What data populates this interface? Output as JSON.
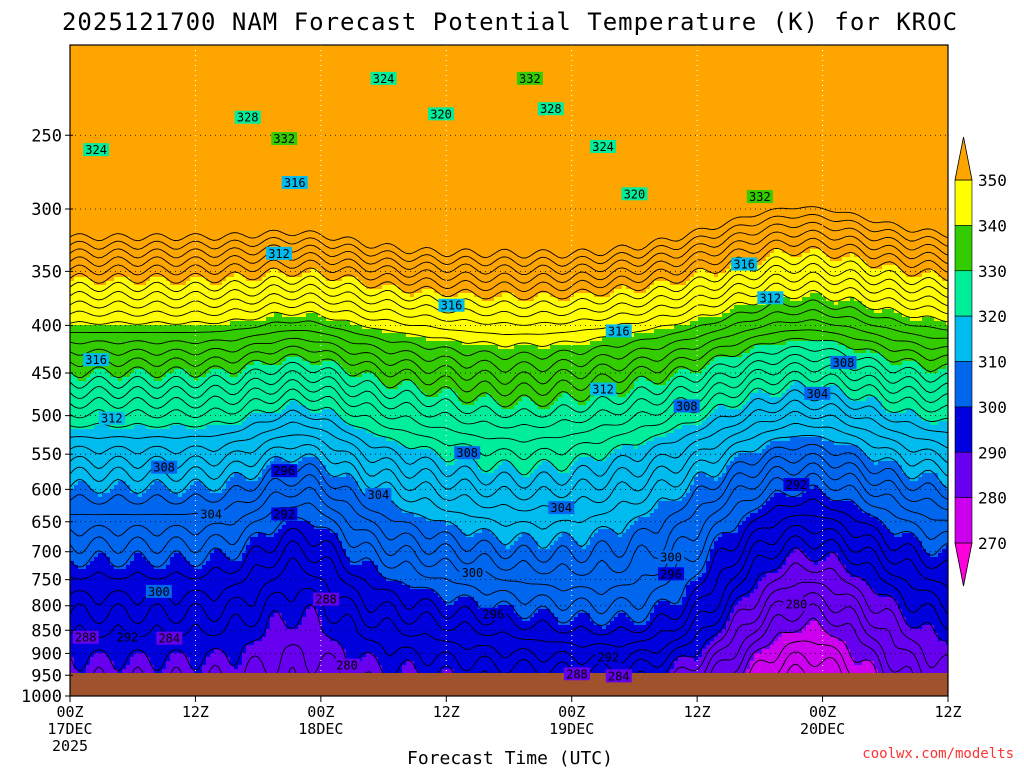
{
  "chart_data": {
    "type": "heatmap",
    "title": "2025121700 NAM Forecast Potential Temperature (K) for KROC",
    "xlabel": "Forecast Time (UTC)",
    "credit": "coolwx.com/modelts",
    "x_ticks": [
      {
        "hour": 0,
        "lines": [
          "00Z",
          "17DEC",
          "2025"
        ]
      },
      {
        "hour": 12,
        "lines": [
          "12Z"
        ]
      },
      {
        "hour": 24,
        "lines": [
          "00Z",
          "18DEC"
        ]
      },
      {
        "hour": 36,
        "lines": [
          "12Z"
        ]
      },
      {
        "hour": 48,
        "lines": [
          "00Z",
          "19DEC"
        ]
      },
      {
        "hour": 60,
        "lines": [
          "12Z"
        ]
      },
      {
        "hour": 72,
        "lines": [
          "00Z",
          "20DEC"
        ]
      },
      {
        "hour": 84,
        "lines": [
          "12Z"
        ]
      }
    ],
    "xlim": [
      0,
      84
    ],
    "y_axis": "pressure (hPa), log scale, inverted",
    "ylim": [
      1000,
      200
    ],
    "y_ticks": [
      250,
      300,
      350,
      400,
      450,
      500,
      550,
      600,
      650,
      700,
      750,
      800,
      850,
      900,
      950,
      1000
    ],
    "grid": true,
    "contour_interval": 2,
    "colorbar": {
      "placement": "right",
      "ticks": [
        350,
        340,
        330,
        320,
        310,
        300,
        290,
        280,
        270
      ],
      "bands": [
        {
          "min": 350,
          "max": 360,
          "color": "#ffa500"
        },
        {
          "min": 340,
          "max": 350,
          "color": "#ffff00"
        },
        {
          "min": 330,
          "max": 340,
          "color": "#33cc00"
        },
        {
          "min": 320,
          "max": 330,
          "color": "#00ee99"
        },
        {
          "min": 310,
          "max": 320,
          "color": "#00bbee"
        },
        {
          "min": 300,
          "max": 310,
          "color": "#0066ee"
        },
        {
          "min": 290,
          "max": 300,
          "color": "#0000dd"
        },
        {
          "min": 280,
          "max": 290,
          "color": "#6600ee"
        },
        {
          "min": 270,
          "max": 280,
          "color": "#cc00ee"
        },
        {
          "min": 260,
          "max": 270,
          "color": "#ff00dd"
        }
      ]
    },
    "ground_color": "#a0522d",
    "contour_labels": [
      {
        "value": 324,
        "hour": 2.5,
        "p": 260
      },
      {
        "value": 328,
        "hour": 17,
        "p": 240
      },
      {
        "value": 332,
        "hour": 20.5,
        "p": 253
      },
      {
        "value": 324,
        "hour": 30,
        "p": 218
      },
      {
        "value": 320,
        "hour": 35.5,
        "p": 238
      },
      {
        "value": 332,
        "hour": 44,
        "p": 218
      },
      {
        "value": 328,
        "hour": 46,
        "p": 235
      },
      {
        "value": 324,
        "hour": 51,
        "p": 258
      },
      {
        "value": 320,
        "hour": 54,
        "p": 290
      },
      {
        "value": 332,
        "hour": 66,
        "p": 292
      },
      {
        "value": 316,
        "hour": 21.5,
        "p": 282
      },
      {
        "value": 312,
        "hour": 20,
        "p": 336
      },
      {
        "value": 316,
        "hour": 2.5,
        "p": 437
      },
      {
        "value": 312,
        "hour": 4,
        "p": 505
      },
      {
        "value": 316,
        "hour": 36.5,
        "p": 382
      },
      {
        "value": 316,
        "hour": 52.5,
        "p": 407
      },
      {
        "value": 312,
        "hour": 51,
        "p": 470
      },
      {
        "value": 316,
        "hour": 64.5,
        "p": 345
      },
      {
        "value": 312,
        "hour": 67,
        "p": 375
      },
      {
        "value": 308,
        "hour": 9,
        "p": 570
      },
      {
        "value": 304,
        "hour": 13.5,
        "p": 640
      },
      {
        "value": 308,
        "hour": 38,
        "p": 550
      },
      {
        "value": 304,
        "hour": 29.5,
        "p": 610
      },
      {
        "value": 304,
        "hour": 47,
        "p": 630
      },
      {
        "value": 308,
        "hour": 59,
        "p": 490
      },
      {
        "value": 308,
        "hour": 74,
        "p": 440
      },
      {
        "value": 304,
        "hour": 71.5,
        "p": 475
      },
      {
        "value": 296,
        "hour": 20.5,
        "p": 575
      },
      {
        "value": 292,
        "hour": 20.5,
        "p": 640
      },
      {
        "value": 292,
        "hour": 69.5,
        "p": 595
      },
      {
        "value": 300,
        "hour": 8.5,
        "p": 775
      },
      {
        "value": 300,
        "hour": 38.5,
        "p": 740
      },
      {
        "value": 300,
        "hour": 57.5,
        "p": 712
      },
      {
        "value": 296,
        "hour": 57.5,
        "p": 742
      },
      {
        "value": 296,
        "hour": 40.5,
        "p": 820
      },
      {
        "value": 288,
        "hour": 24.5,
        "p": 790
      },
      {
        "value": 288,
        "hour": 1.5,
        "p": 868
      },
      {
        "value": 292,
        "hour": 5.5,
        "p": 868
      },
      {
        "value": 284,
        "hour": 9.5,
        "p": 870
      },
      {
        "value": 280,
        "hour": 26.5,
        "p": 930
      },
      {
        "value": 288,
        "hour": 48.5,
        "p": 950
      },
      {
        "value": 292,
        "hour": 51.5,
        "p": 912
      },
      {
        "value": 284,
        "hour": 52.5,
        "p": 955
      },
      {
        "value": 280,
        "hour": 69.5,
        "p": 800
      }
    ]
  }
}
